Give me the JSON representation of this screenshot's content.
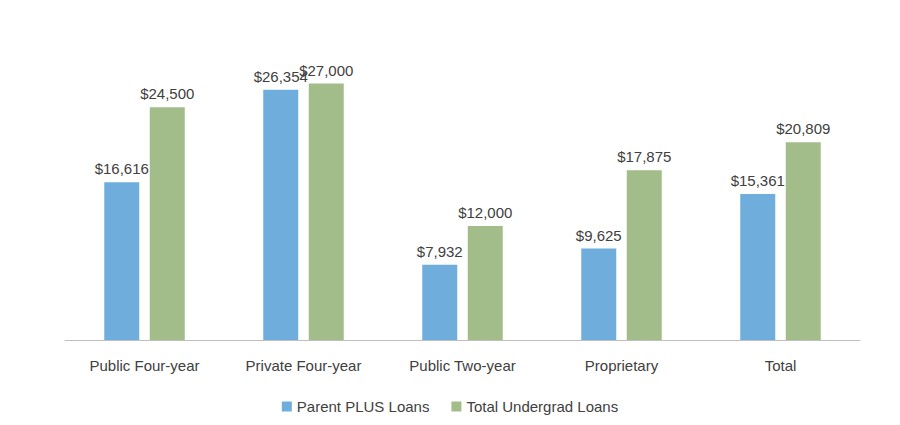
{
  "chart_data": {
    "type": "bar",
    "categories": [
      "Public Four-year",
      "Private Four-year",
      "Public Two-year",
      "Proprietary",
      "Total"
    ],
    "series": [
      {
        "name": "Parent PLUS Loans",
        "color": "#6FAEDC",
        "values": [
          16616,
          26354,
          7932,
          9625,
          15361
        ],
        "value_labels": [
          "$16,616",
          "$26,354",
          "$7,932",
          "$9,625",
          "$15,361"
        ]
      },
      {
        "name": "Total Undergrad Loans",
        "color": "#A2BD8A",
        "values": [
          24500,
          27000,
          12000,
          17875,
          20809
        ],
        "value_labels": [
          "$24,500",
          "$27,000",
          "$12,000",
          "$17,875",
          "$20,809"
        ]
      }
    ],
    "ylim": [
      0,
      30000
    ],
    "yticks": [
      0,
      30000
    ],
    "grid": false,
    "legend": "bottom",
    "data_labels": true,
    "tick_labels": "x"
  }
}
